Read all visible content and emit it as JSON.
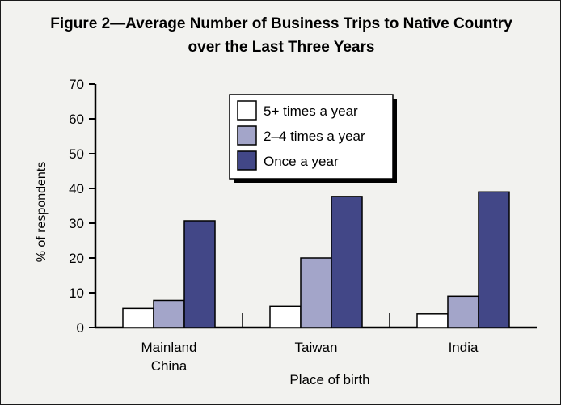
{
  "figure": {
    "title_line1": "Figure 2—Average Number of Business Trips to Native Country",
    "title_line2": "over the Last Three Years"
  },
  "chart_data": {
    "type": "bar",
    "title": "Figure 2—Average Number of Business Trips to Native Country over the Last Three Years",
    "xlabel": "Place of birth",
    "ylabel": "% of respondents",
    "ylim": [
      0,
      70
    ],
    "yticks": [
      0,
      10,
      20,
      30,
      40,
      50,
      60,
      70
    ],
    "categories": [
      [
        "Mainland",
        "China"
      ],
      [
        "Taiwan"
      ],
      [
        "India"
      ]
    ],
    "series": [
      {
        "name": "5+ times a year",
        "color": "#ffffff",
        "values": [
          5.5,
          6.2,
          4.0
        ]
      },
      {
        "name": "2–4 times a year",
        "color": "#a3a5c9",
        "values": [
          7.8,
          20.0,
          9.0
        ]
      },
      {
        "name": "Once a year",
        "color": "#424787",
        "values": [
          30.7,
          37.7,
          39.0
        ]
      }
    ],
    "grid": false,
    "legend_position": "top-center"
  }
}
